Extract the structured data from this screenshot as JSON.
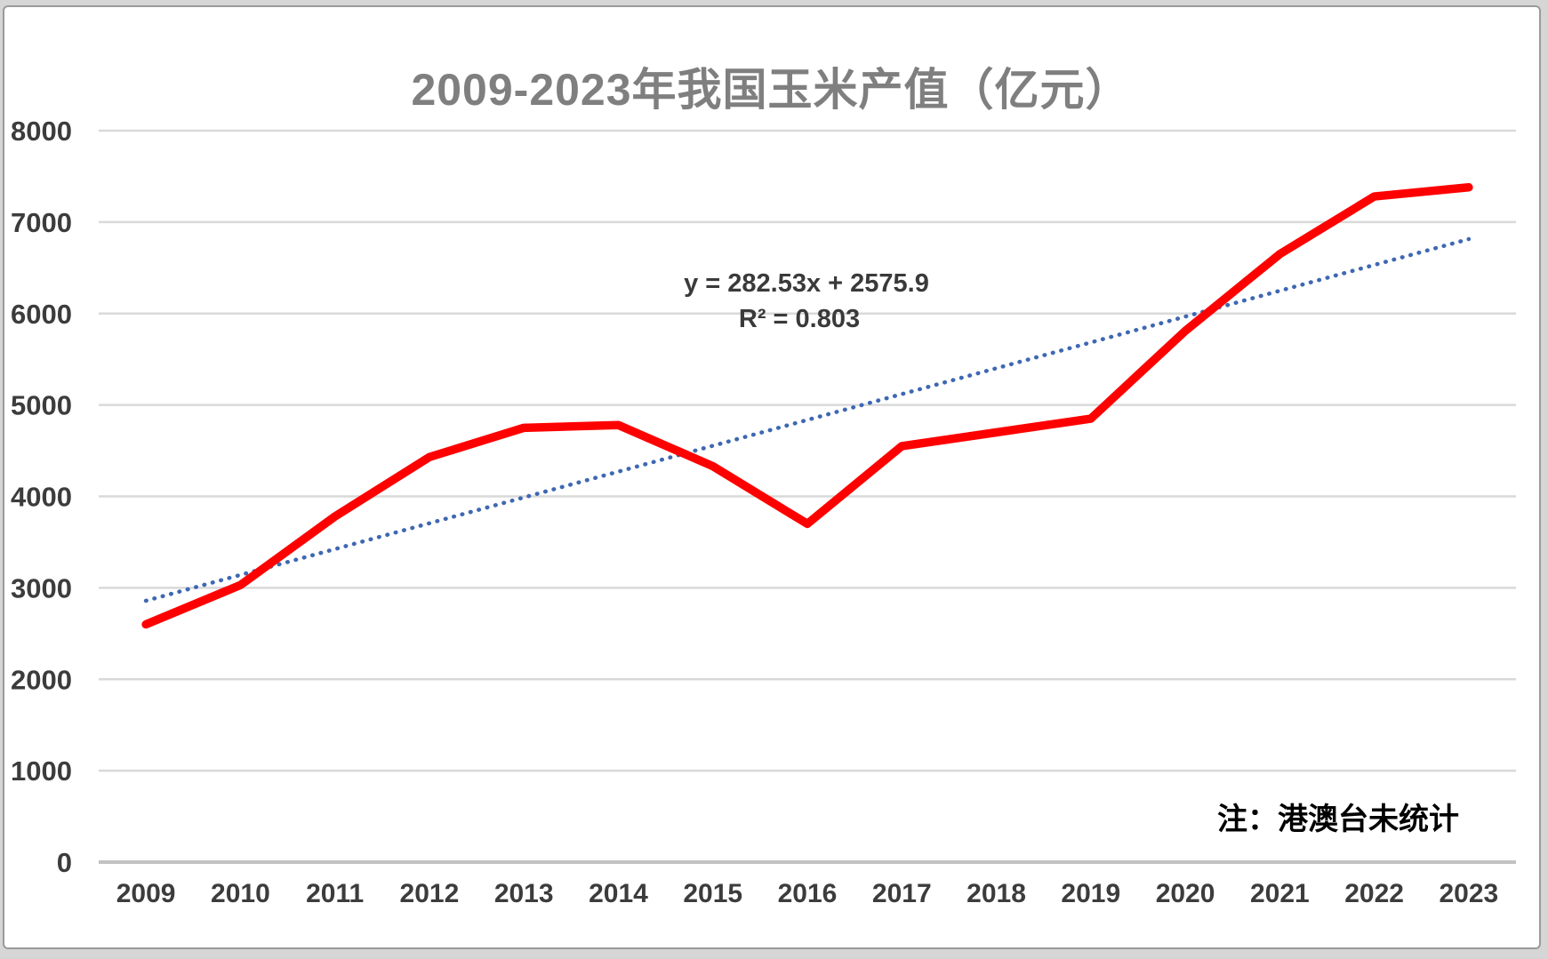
{
  "page": {
    "note": "注：港澳台未统计"
  },
  "chart_data": {
    "type": "line",
    "title": "2009-2023年我国玉米产值（亿元）",
    "categories": [
      "2009",
      "2010",
      "2011",
      "2012",
      "2013",
      "2014",
      "2015",
      "2016",
      "2017",
      "2018",
      "2019",
      "2020",
      "2021",
      "2022",
      "2023"
    ],
    "series": [
      {
        "name": "corn-output-value",
        "color": "#ff0000",
        "values": [
          2600,
          3030,
          3780,
          4430,
          4750,
          4780,
          4330,
          3700,
          4550,
          4700,
          4850,
          5810,
          6650,
          7280,
          7380
        ]
      }
    ],
    "trendline": {
      "name": "linear-trend",
      "color": "#3e68b2",
      "style": "dotted",
      "slope": 282.53,
      "intercept": 2575.9,
      "equation_label": "y = 282.53x + 2575.9",
      "r_squared_label": "R² = 0.803"
    },
    "xlabel": "",
    "ylabel": "",
    "ylim": [
      0,
      8000
    ],
    "yticks": [
      0,
      1000,
      2000,
      3000,
      4000,
      5000,
      6000,
      7000,
      8000
    ],
    "grid": true,
    "legend_position": "none",
    "gridline_color": "#d9d9d9",
    "axis_line_color": "#c2c2c2",
    "note": "注：港澳台未统计"
  }
}
